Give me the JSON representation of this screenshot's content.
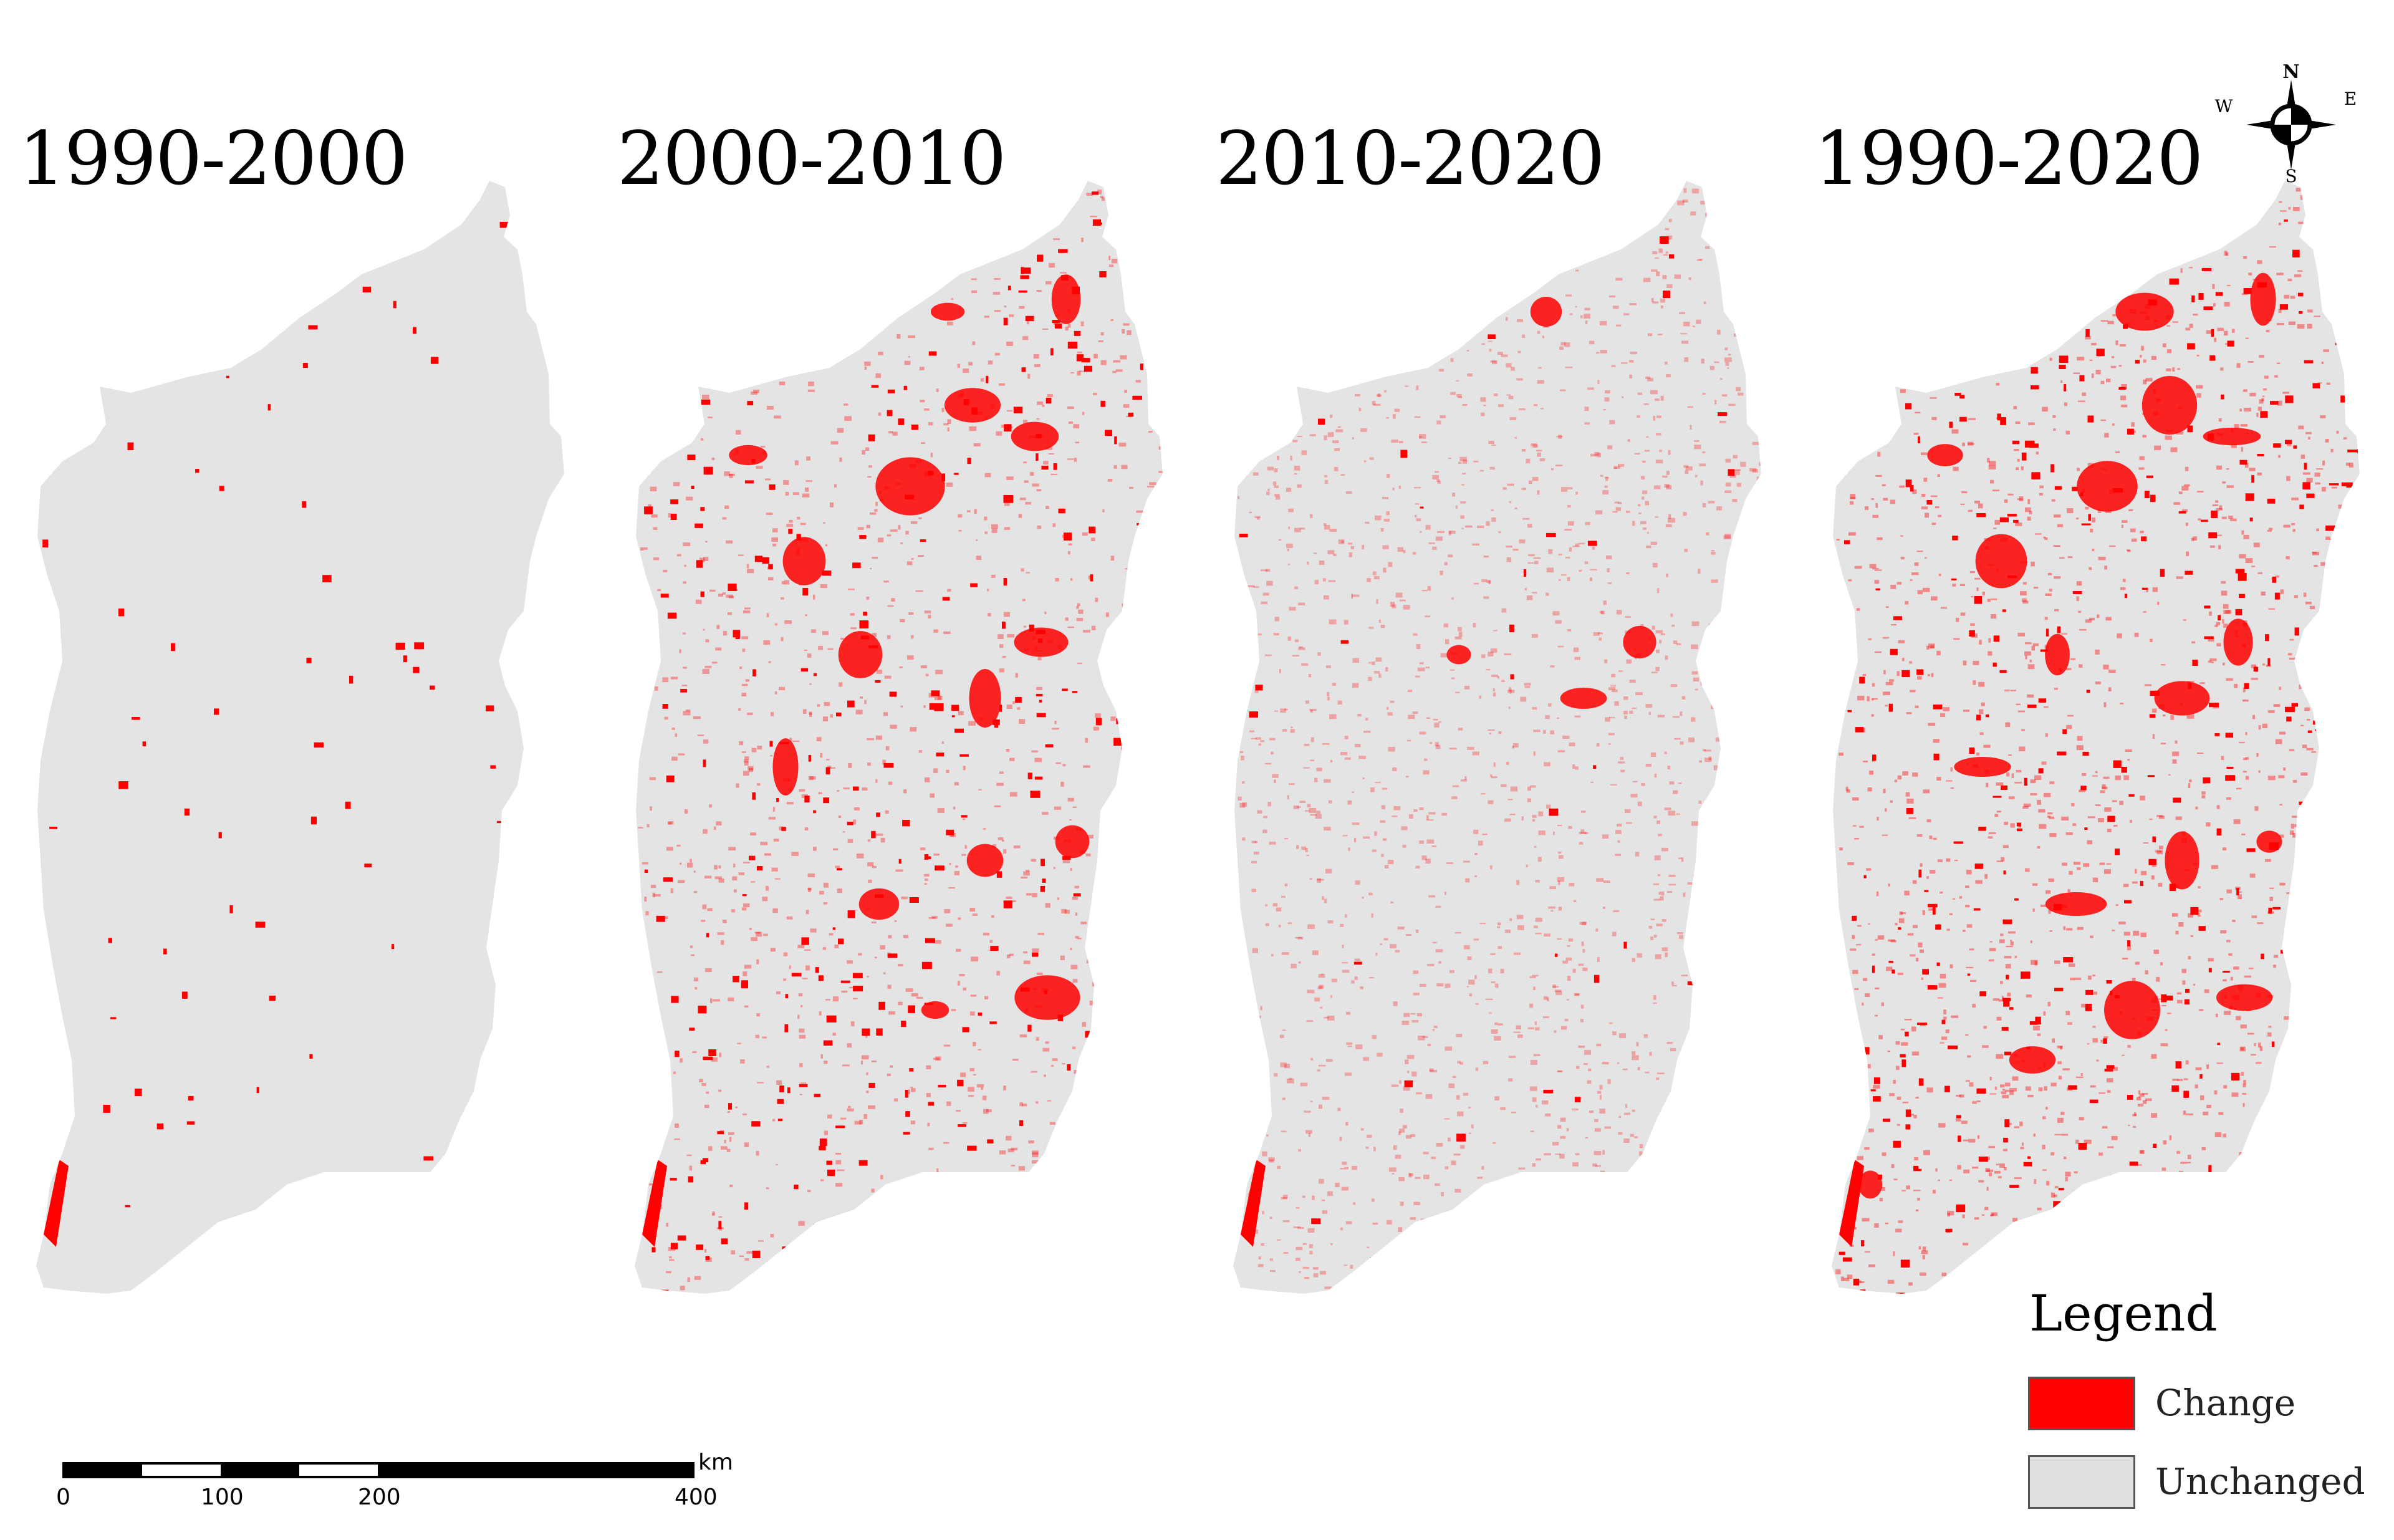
{
  "panels": [
    {
      "title": "1990-2000"
    },
    {
      "title": "2000-2010"
    },
    {
      "title": "2010-2020"
    },
    {
      "title": "1990-2020"
    }
  ],
  "compass": {
    "north": "N",
    "south": "S",
    "east": "E",
    "west": "W"
  },
  "legend": {
    "title": "Legend",
    "items": [
      {
        "label": "Change",
        "color": "#ff0000"
      },
      {
        "label": "Unchanged",
        "color": "#e0e0e0"
      }
    ]
  },
  "scale_bar": {
    "unit": "km",
    "ticks": [
      "0",
      "100",
      "200",
      "400"
    ]
  },
  "colors": {
    "change": "#ff0000",
    "unchanged": "#e4e4e4",
    "light_change": "#f8c8c8"
  }
}
